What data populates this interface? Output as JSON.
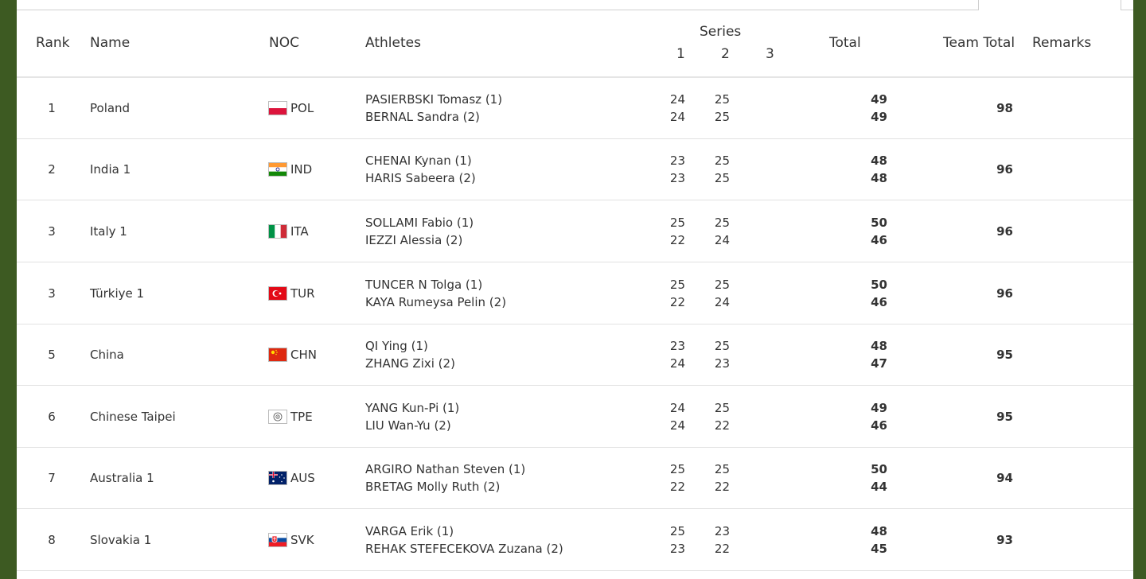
{
  "table": {
    "headers": {
      "rank": "Rank",
      "name": "Name",
      "noc": "NOC",
      "athletes": "Athletes",
      "series": "Series",
      "series_1": "1",
      "series_2": "2",
      "series_3": "3",
      "total": "Total",
      "team_total": "Team Total",
      "remarks": "Remarks"
    },
    "rows": [
      {
        "rank": "1",
        "name": "Poland",
        "noc": "POL",
        "flag_icon": "poland-flag-icon",
        "athletes": [
          {
            "name": "PASIERBSKI Tomasz (1)",
            "s1": "24",
            "s2": "25",
            "total": "49"
          },
          {
            "name": "BERNAL Sandra (2)",
            "s1": "24",
            "s2": "25",
            "total": "49"
          }
        ],
        "team_total": "98"
      },
      {
        "rank": "2",
        "name": "India 1",
        "noc": "IND",
        "flag_icon": "india-flag-icon",
        "athletes": [
          {
            "name": "CHENAI Kynan (1)",
            "s1": "23",
            "s2": "25",
            "total": "48"
          },
          {
            "name": "HARIS Sabeera (2)",
            "s1": "23",
            "s2": "25",
            "total": "48"
          }
        ],
        "team_total": "96"
      },
      {
        "rank": "3",
        "name": "Italy 1",
        "noc": "ITA",
        "flag_icon": "italy-flag-icon",
        "athletes": [
          {
            "name": "SOLLAMI Fabio (1)",
            "s1": "25",
            "s2": "25",
            "total": "50"
          },
          {
            "name": "IEZZI Alessia (2)",
            "s1": "22",
            "s2": "24",
            "total": "46"
          }
        ],
        "team_total": "96"
      },
      {
        "rank": "3",
        "name": "Türkiye 1",
        "noc": "TUR",
        "flag_icon": "turkey-flag-icon",
        "athletes": [
          {
            "name": "TUNCER N Tolga (1)",
            "s1": "25",
            "s2": "25",
            "total": "50"
          },
          {
            "name": "KAYA Rumeysa Pelin (2)",
            "s1": "22",
            "s2": "24",
            "total": "46"
          }
        ],
        "team_total": "96"
      },
      {
        "rank": "5",
        "name": "China",
        "noc": "CHN",
        "flag_icon": "china-flag-icon",
        "athletes": [
          {
            "name": "QI Ying (1)",
            "s1": "23",
            "s2": "25",
            "total": "48"
          },
          {
            "name": "ZHANG Zixi (2)",
            "s1": "24",
            "s2": "23",
            "total": "47"
          }
        ],
        "team_total": "95"
      },
      {
        "rank": "6",
        "name": "Chinese Taipei",
        "noc": "TPE",
        "flag_icon": "chinese-taipei-flag-icon",
        "athletes": [
          {
            "name": "YANG Kun-Pi (1)",
            "s1": "24",
            "s2": "25",
            "total": "49"
          },
          {
            "name": "LIU Wan-Yu (2)",
            "s1": "24",
            "s2": "22",
            "total": "46"
          }
        ],
        "team_total": "95"
      },
      {
        "rank": "7",
        "name": "Australia 1",
        "noc": "AUS",
        "flag_icon": "australia-flag-icon",
        "athletes": [
          {
            "name": "ARGIRO Nathan Steven (1)",
            "s1": "25",
            "s2": "25",
            "total": "50"
          },
          {
            "name": "BRETAG Molly Ruth (2)",
            "s1": "22",
            "s2": "22",
            "total": "44"
          }
        ],
        "team_total": "94"
      },
      {
        "rank": "8",
        "name": "Slovakia 1",
        "noc": "SVK",
        "flag_icon": "slovakia-flag-icon",
        "athletes": [
          {
            "name": "VARGA Erik (1)",
            "s1": "25",
            "s2": "23",
            "total": "48"
          },
          {
            "name": "REHAK STEFECEKOVA Zuzana (2)",
            "s1": "23",
            "s2": "22",
            "total": "45"
          }
        ],
        "team_total": "93"
      }
    ]
  },
  "colors": {
    "page_background": "#3d5a22",
    "panel_background": "#ffffff",
    "row_divider": "#e2e2e2"
  }
}
